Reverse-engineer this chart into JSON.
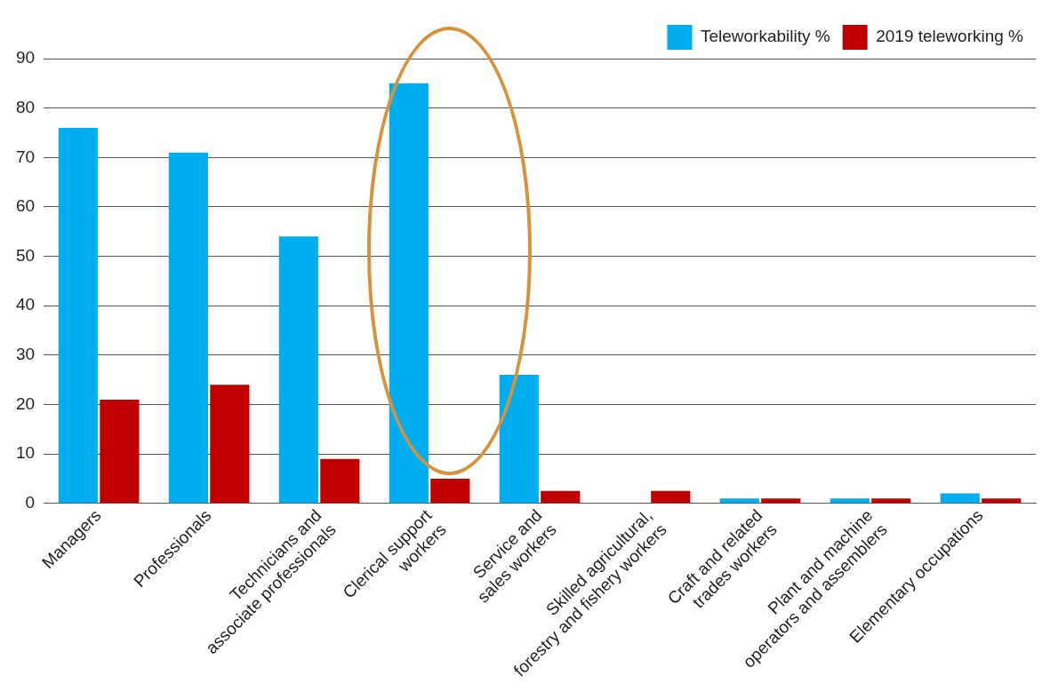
{
  "chart_data": {
    "type": "bar",
    "categories": [
      "Managers",
      "Professionals",
      "Technicians and associate professionals",
      "Clerical support  workers",
      "Service and sales workers",
      "Skilled agricultural, forestry and fishery workers",
      "Craft and related trades workers",
      "Plant and machine operators and assemblers",
      "Elementary occupations"
    ],
    "series": [
      {
        "name": "Teleworkability %",
        "color": "#00aeef",
        "values": [
          76,
          71,
          54,
          85,
          26,
          0,
          1,
          1,
          2
        ]
      },
      {
        "name": "2019 teleworking %",
        "color": "#c00000",
        "values": [
          21,
          24,
          9,
          5,
          2.5,
          2.5,
          1,
          1,
          1
        ]
      }
    ],
    "ylim": [
      0,
      90
    ],
    "yticks": [
      0,
      10,
      20,
      30,
      40,
      50,
      60,
      70,
      80,
      90
    ],
    "grid": "y",
    "legend": "top right"
  }
}
